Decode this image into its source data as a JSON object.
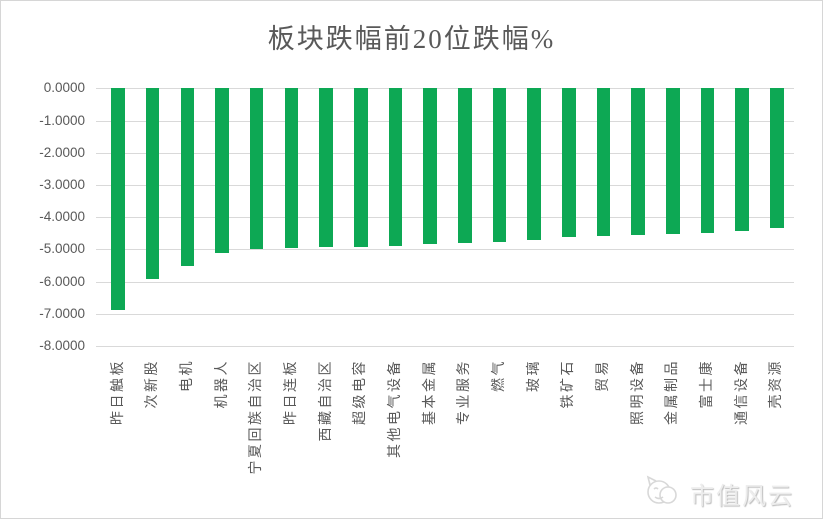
{
  "chart_data": {
    "type": "bar",
    "title": "板块跌幅前20位跌幅%",
    "orientation": "vertical",
    "bar_color": "#0da854",
    "grid": "horizontal",
    "legend": "none",
    "ylim": [
      -8,
      0
    ],
    "yticks": [
      "0.0000",
      "-1.0000",
      "-2.0000",
      "-3.0000",
      "-4.0000",
      "-5.0000",
      "-6.0000",
      "-7.0000",
      "-8.0000"
    ],
    "categories": [
      "昨日触板",
      "次新股",
      "电机",
      "机器人",
      "宁夏回族自治区",
      "昨日连板",
      "西藏自治区",
      "超级电容",
      "其他电气设备",
      "基本金属",
      "专业服务",
      "燃气",
      "玻璃",
      "铁矿石",
      "贸易",
      "照明设备",
      "金属制品",
      "富士康",
      "通信设备",
      "壳资源"
    ],
    "values": [
      -6.9,
      -5.93,
      -5.51,
      -5.1,
      -4.98,
      -4.97,
      -4.93,
      -4.92,
      -4.89,
      -4.83,
      -4.79,
      -4.76,
      -4.72,
      -4.62,
      -4.58,
      -4.56,
      -4.53,
      -4.5,
      -4.43,
      -4.35
    ],
    "xlabel": "",
    "ylabel": ""
  },
  "watermark": {
    "text": "市值风云",
    "logo": "cat-logo"
  },
  "style_colors": {
    "bar_green": "#0da854",
    "gridline_gray": "#d9d9d9",
    "text_gray": "#595959",
    "watermark_gray": "#ededed"
  }
}
